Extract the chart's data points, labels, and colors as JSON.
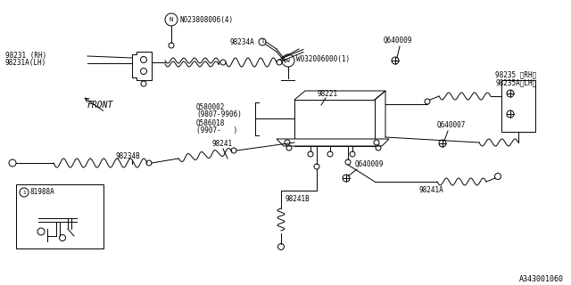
{
  "bg_color": "#ffffff",
  "line_color": "#000000",
  "text_color": "#000000",
  "fig_width": 6.4,
  "fig_height": 3.2,
  "dpi": 100,
  "part_number": "A343001060",
  "lw": 0.7,
  "labels": {
    "top_left_1": "98231 (RH)",
    "top_left_2": "98231A(LH)",
    "top_n": "N023808006(4)",
    "label_98234A": "98234A",
    "label_w": "W032006000(1)",
    "q640009_top": "Q640009",
    "q640007": "Q640007",
    "q640009_bot": "Q640009",
    "right_1": "98235 〈RH〉",
    "right_2": "98235A〈LH〉",
    "label_98221": "98221",
    "q580002": "Q580002",
    "dates1": "(9807-9906)",
    "q586018": "Q586018",
    "dates2": "(9907-   )",
    "label_98241": "98241",
    "label_98234B": "98234B",
    "label_98241B": "98241B",
    "label_98241A": "98241A",
    "inset_num": "81988A",
    "front_label": "FRONT"
  }
}
